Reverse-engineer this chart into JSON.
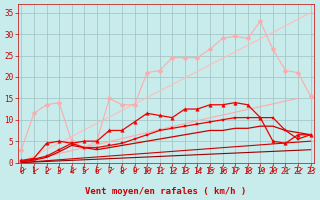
{
  "xlabel": "Vent moyen/en rafales ( km/h )",
  "background_color": "#c8ecec",
  "grid_color": "#a0c0c0",
  "x": [
    0,
    1,
    2,
    3,
    4,
    5,
    6,
    7,
    8,
    9,
    10,
    11,
    12,
    13,
    14,
    15,
    16,
    17,
    18,
    19,
    20,
    21,
    22,
    23
  ],
  "series": [
    {
      "name": "straight_diagonal_light",
      "y": [
        0,
        1.52,
        3.04,
        4.57,
        6.09,
        7.61,
        9.13,
        10.65,
        12.17,
        13.7,
        15.22,
        16.74,
        18.26,
        19.78,
        21.3,
        22.83,
        24.35,
        25.87,
        27.39,
        28.91,
        30.43,
        31.96,
        33.48,
        35.0
      ],
      "color": "#ffbbbb",
      "lw": 0.8,
      "marker": null,
      "zorder": 1
    },
    {
      "name": "light_pink_wavy_with_markers_full",
      "y": [
        3.0,
        11.5,
        13.5,
        14.0,
        5.0,
        3.5,
        5.0,
        15.0,
        13.5,
        13.5,
        21.0,
        21.5,
        24.5,
        24.5,
        24.5,
        26.5,
        29.0,
        29.5,
        29.0,
        33.0,
        26.5,
        21.5,
        21.0,
        15.5
      ],
      "color": "#ffaaaa",
      "lw": 0.8,
      "marker": "D",
      "markersize": 2.5,
      "zorder": 2
    },
    {
      "name": "light_pink_straight_medium",
      "y": [
        0,
        0.7,
        1.4,
        2.1,
        2.8,
        3.5,
        4.2,
        4.9,
        5.6,
        6.3,
        7.0,
        7.7,
        8.4,
        9.1,
        9.8,
        10.45,
        11.1,
        11.75,
        12.4,
        13.05,
        13.7,
        14.35,
        15.0,
        null
      ],
      "color": "#ffaaaa",
      "lw": 0.8,
      "marker": null,
      "zorder": 1
    },
    {
      "name": "red_medium_with_triangles",
      "y": [
        0.5,
        1.0,
        4.5,
        5.0,
        4.5,
        5.0,
        5.0,
        7.5,
        7.5,
        9.5,
        11.5,
        11.0,
        10.5,
        12.5,
        12.5,
        13.5,
        13.5,
        14.0,
        13.5,
        10.5,
        5.0,
        4.5,
        6.5,
        6.5
      ],
      "color": "#ee0000",
      "lw": 0.9,
      "marker": "^",
      "markersize": 2.5,
      "zorder": 5
    },
    {
      "name": "red_medium_with_squares",
      "y": [
        0.3,
        0.8,
        1.5,
        3.0,
        4.5,
        3.5,
        3.5,
        4.0,
        4.5,
        5.5,
        6.5,
        7.5,
        8.0,
        8.5,
        9.0,
        9.5,
        10.0,
        10.5,
        10.5,
        10.5,
        10.5,
        7.5,
        5.5,
        6.5
      ],
      "color": "#ee0000",
      "lw": 0.9,
      "marker": "s",
      "markersize": 2.0,
      "zorder": 4
    },
    {
      "name": "red_lower_smooth",
      "y": [
        0.2,
        0.6,
        1.2,
        2.5,
        4.0,
        3.5,
        3.0,
        3.5,
        4.0,
        4.5,
        5.0,
        5.5,
        6.0,
        6.5,
        7.0,
        7.5,
        7.5,
        8.0,
        8.0,
        8.5,
        8.5,
        7.5,
        7.0,
        6.5
      ],
      "color": "#cc0000",
      "lw": 0.9,
      "marker": null,
      "zorder": 3
    },
    {
      "name": "red_straight_bottom",
      "y": [
        0,
        0.22,
        0.43,
        0.65,
        0.87,
        1.09,
        1.3,
        1.52,
        1.74,
        1.96,
        2.17,
        2.39,
        2.61,
        2.83,
        3.04,
        3.26,
        3.48,
        3.7,
        3.91,
        4.13,
        4.35,
        4.57,
        4.78,
        5.0
      ],
      "color": "#cc0000",
      "lw": 0.8,
      "marker": null,
      "zorder": 2
    },
    {
      "name": "dark_red_straight_lowest",
      "y": [
        0,
        0.13,
        0.26,
        0.39,
        0.52,
        0.65,
        0.78,
        0.91,
        1.04,
        1.17,
        1.3,
        1.43,
        1.57,
        1.7,
        1.83,
        1.96,
        2.09,
        2.22,
        2.35,
        2.48,
        2.61,
        2.74,
        2.87,
        3.0
      ],
      "color": "#990000",
      "lw": 0.8,
      "marker": null,
      "zorder": 2
    }
  ],
  "ylim": [
    0,
    37
  ],
  "xlim": [
    -0.3,
    23.3
  ],
  "yticks": [
    0,
    5,
    10,
    15,
    20,
    25,
    30,
    35
  ],
  "xticks": [
    0,
    1,
    2,
    3,
    4,
    5,
    6,
    7,
    8,
    9,
    10,
    11,
    12,
    13,
    14,
    15,
    16,
    17,
    18,
    19,
    20,
    21,
    22,
    23
  ],
  "tick_color": "#cc0000",
  "tick_fontsize": 5.5,
  "xlabel_fontsize": 6.5
}
